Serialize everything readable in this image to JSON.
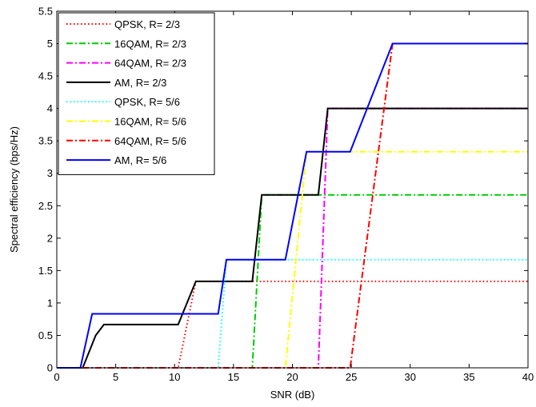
{
  "chart_data": {
    "type": "line",
    "title": "",
    "xlabel": "SNR (dB)",
    "ylabel": "Spectral efficiency (bps/Hz)",
    "xlim": [
      0,
      40
    ],
    "ylim": [
      0,
      5.5
    ],
    "xticks": [
      0,
      5,
      10,
      15,
      20,
      25,
      30,
      35,
      40
    ],
    "yticks": [
      0,
      0.5,
      1,
      1.5,
      2,
      2.5,
      3,
      3.5,
      4,
      4.5,
      5,
      5.5
    ],
    "grid": false,
    "legend_position": "top-left",
    "series": [
      {
        "name": "QPSK, R= 2/3",
        "color": "#ff0000",
        "dash": "dotted",
        "points": [
          [
            0,
            0
          ],
          [
            10.3,
            0
          ],
          [
            11.8,
            1.333
          ],
          [
            40,
            1.333
          ]
        ]
      },
      {
        "name": "16QAM, R= 2/3",
        "color": "#00cc00",
        "dash": "dashdot",
        "points": [
          [
            0,
            0
          ],
          [
            16.6,
            0
          ],
          [
            17.4,
            2.667
          ],
          [
            40,
            2.667
          ]
        ]
      },
      {
        "name": "64QAM, R= 2/3",
        "color": "#ff00ff",
        "dash": "dashdot",
        "points": [
          [
            0,
            0
          ],
          [
            22.2,
            0
          ],
          [
            23.0,
            4
          ],
          [
            40,
            4
          ]
        ]
      },
      {
        "name": "AM, R= 2/3",
        "color": "#000000",
        "dash": "solid",
        "points": [
          [
            0,
            0
          ],
          [
            2.2,
            0
          ],
          [
            3.3,
            0.5
          ],
          [
            4,
            0.667
          ],
          [
            10.3,
            0.667
          ],
          [
            11.8,
            1.333
          ],
          [
            16.6,
            1.333
          ],
          [
            17.4,
            2.667
          ],
          [
            22.2,
            2.667
          ],
          [
            23.0,
            4
          ],
          [
            40,
            4
          ]
        ]
      },
      {
        "name": "QPSK, R= 5/6",
        "color": "#00ffff",
        "dash": "dotted",
        "points": [
          [
            0,
            0
          ],
          [
            13.7,
            0
          ],
          [
            14.4,
            1.667
          ],
          [
            40,
            1.667
          ]
        ]
      },
      {
        "name": "16QAM, R= 5/6",
        "color": "#ffff00",
        "dash": "dashdot",
        "points": [
          [
            0,
            0
          ],
          [
            19.4,
            0
          ],
          [
            21.2,
            3.333
          ],
          [
            40,
            3.333
          ]
        ]
      },
      {
        "name": "64QAM, R= 5/6",
        "color": "#ff0000",
        "dash": "dashdot",
        "points": [
          [
            0,
            0
          ],
          [
            24.9,
            0
          ],
          [
            28.5,
            5
          ],
          [
            40,
            5
          ]
        ]
      },
      {
        "name": "AM, R= 5/6",
        "color": "#0000ff",
        "dash": "solid",
        "points": [
          [
            0,
            0
          ],
          [
            2.0,
            0
          ],
          [
            3.0,
            0.833
          ],
          [
            13.7,
            0.833
          ],
          [
            14.4,
            1.667
          ],
          [
            19.4,
            1.667
          ],
          [
            21.2,
            3.333
          ],
          [
            23.3,
            3.333
          ],
          [
            24.9,
            3.333
          ],
          [
            28.5,
            5
          ],
          [
            40,
            5
          ]
        ]
      }
    ]
  }
}
